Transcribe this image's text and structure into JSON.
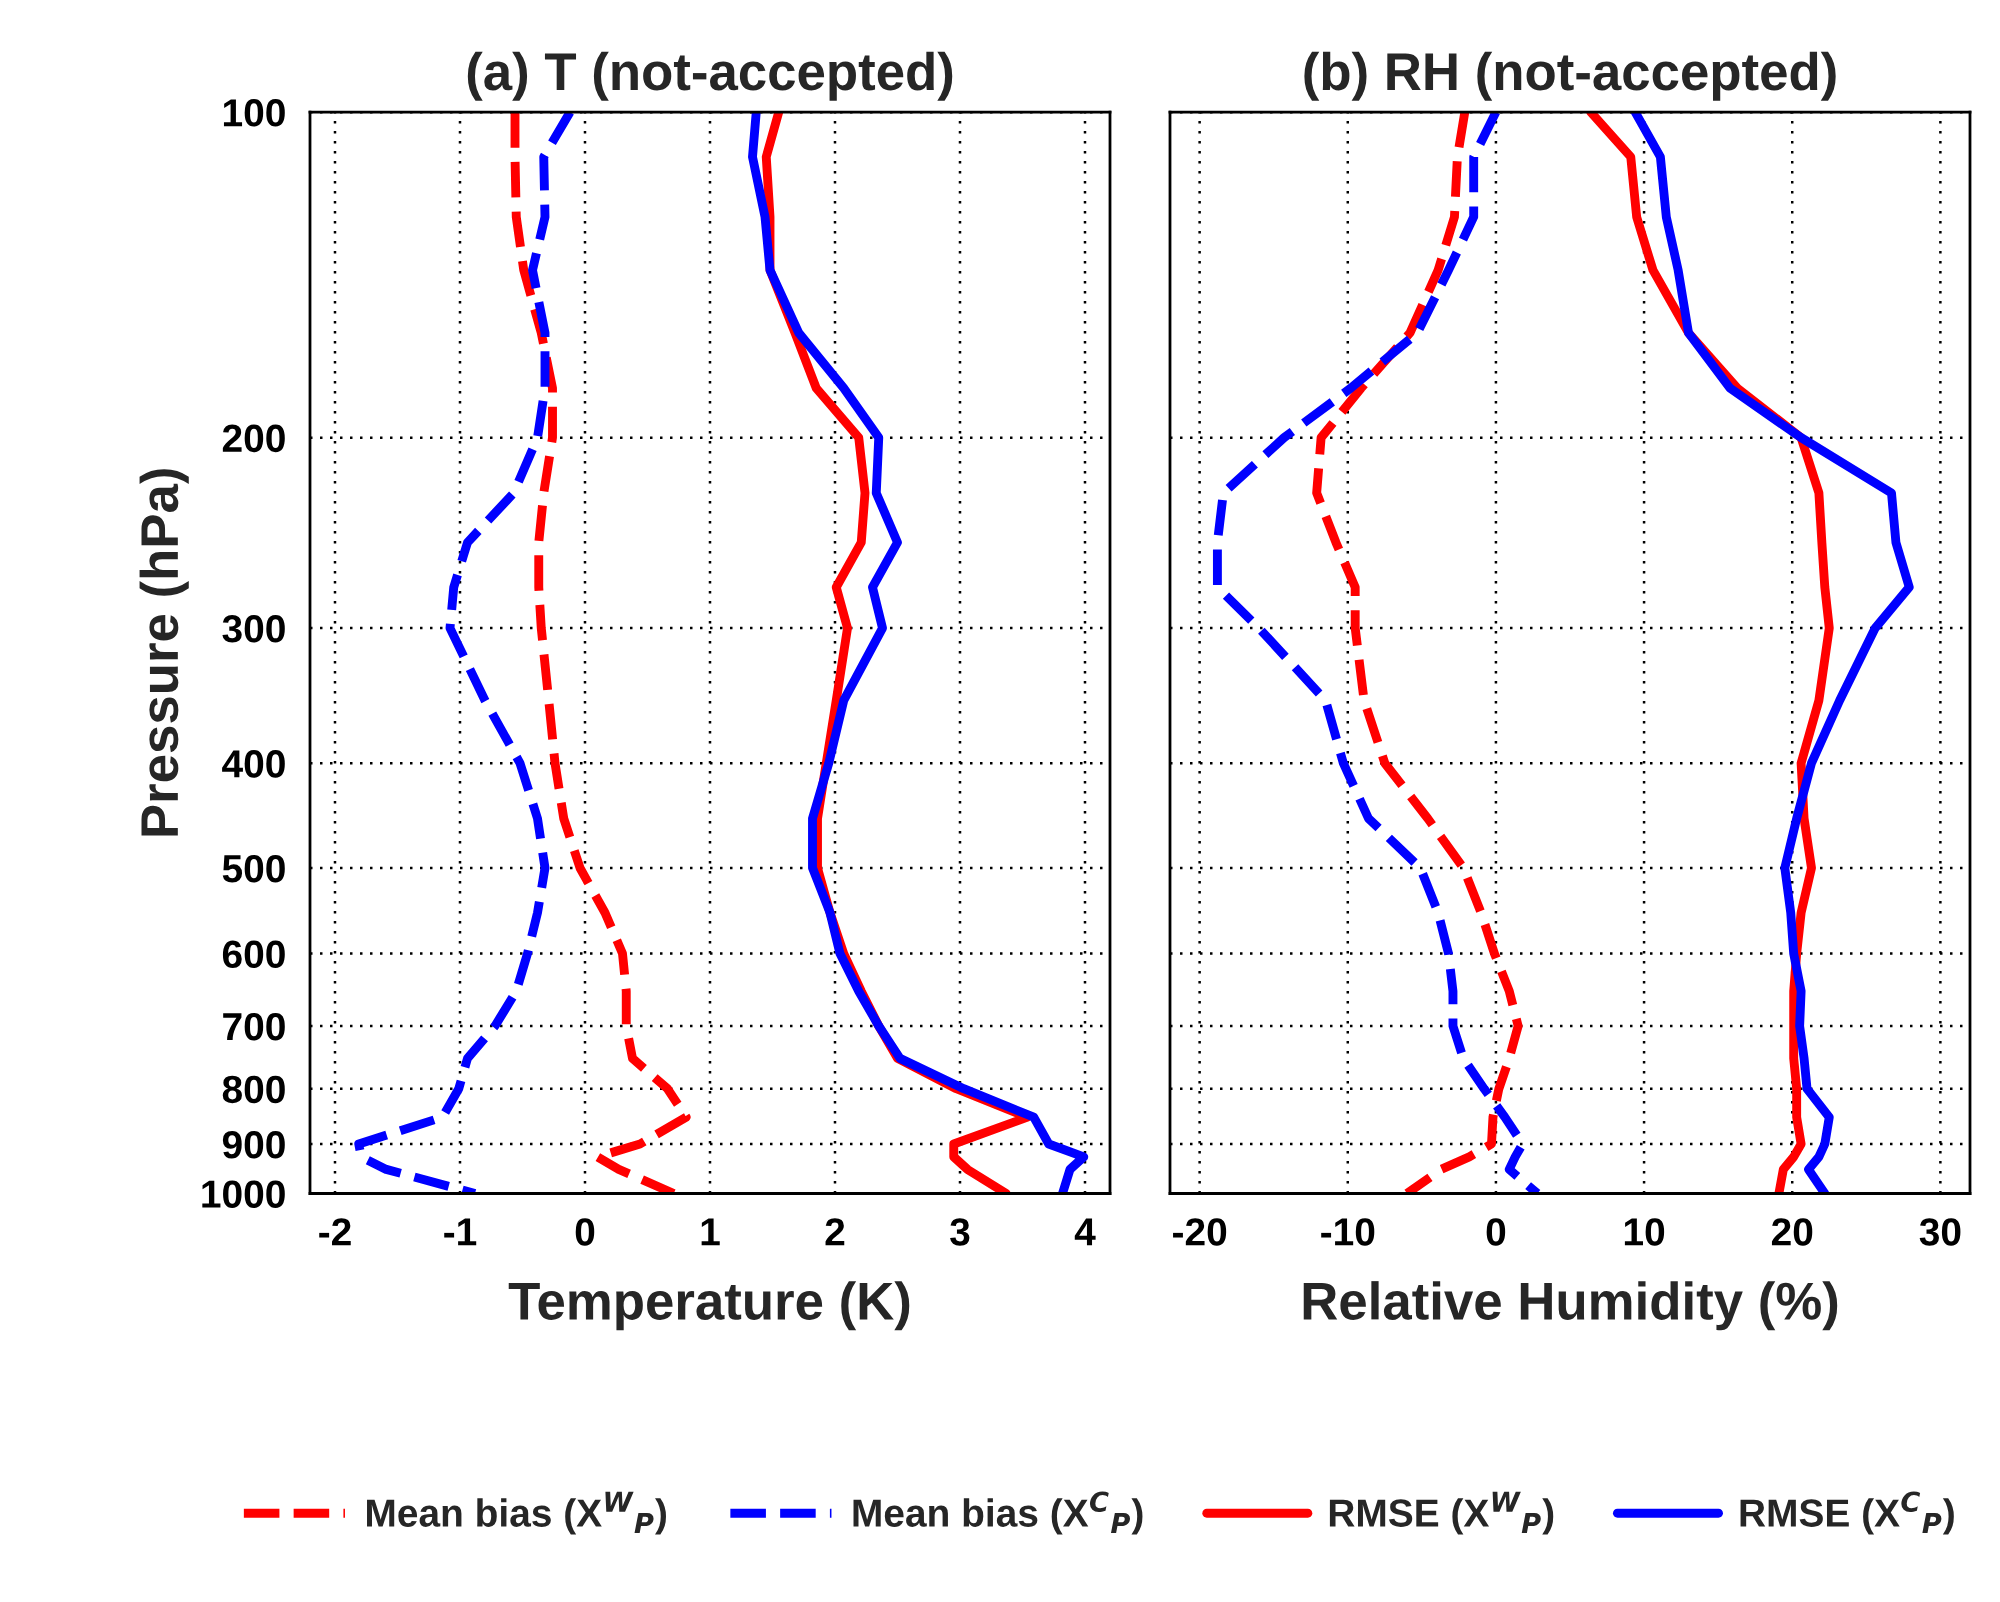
{
  "chart_data": [
    {
      "type": "line",
      "title": "(a) T (not-accepted)",
      "xlabel": "Temperature (K)",
      "ylabel": "Pressure (hPa)",
      "xlim": [
        -2.2,
        4.2
      ],
      "xticks": [
        -2,
        -1,
        0,
        1,
        2,
        3,
        4
      ],
      "ylim": [
        1000,
        100
      ],
      "yticks": [
        100,
        200,
        300,
        400,
        500,
        600,
        700,
        800,
        900,
        1000
      ],
      "log": "y",
      "grid": true,
      "legend": "bottom",
      "series": [
        {
          "name": "Mean bias (X$^{W}$$_{P}$)",
          "color": "#ff0000",
          "line_style": "dashed",
          "x": [
            -0.56,
            -0.56,
            -0.55,
            -0.49,
            -0.35,
            -0.26,
            -0.26,
            -0.33,
            -0.37,
            -0.37,
            -0.35,
            -0.29,
            -0.24,
            -0.17,
            -0.04,
            0.16,
            0.3,
            0.33,
            0.33,
            0.38,
            0.66,
            0.81,
            0.44,
            0.1,
            0.27,
            0.71
          ],
          "values": [
            100,
            110,
            125,
            140,
            160,
            180,
            200,
            225,
            250,
            275,
            300,
            350,
            400,
            450,
            500,
            550,
            600,
            650,
            700,
            750,
            800,
            850,
            900,
            925,
            950,
            1000
          ]
        },
        {
          "name": "Mean bias (X$^{C}$$_{P}$)",
          "color": "#0000ff",
          "line_style": "dashed",
          "x": [
            -0.12,
            -0.33,
            -0.32,
            -0.42,
            -0.32,
            -0.32,
            -0.38,
            -0.57,
            -0.94,
            -1.05,
            -1.08,
            -0.8,
            -0.52,
            -0.38,
            -0.32,
            -0.38,
            -0.46,
            -0.55,
            -0.72,
            -0.94,
            -1.01,
            -1.14,
            -1.81,
            -1.79,
            -1.59,
            -0.88
          ],
          "values": [
            100,
            110,
            125,
            140,
            160,
            180,
            200,
            225,
            250,
            275,
            300,
            350,
            400,
            450,
            500,
            550,
            600,
            650,
            700,
            750,
            800,
            850,
            900,
            925,
            950,
            1000
          ]
        },
        {
          "name": "RMSE (X$^{W}$$_{P}$)",
          "color": "#ff0000",
          "line_style": "solid",
          "x": [
            1.55,
            1.45,
            1.48,
            1.48,
            1.68,
            1.85,
            2.19,
            2.24,
            2.21,
            2.01,
            2.1,
            2.01,
            1.93,
            1.86,
            1.86,
            1.96,
            2.07,
            2.21,
            2.35,
            2.5,
            2.97,
            3.54,
            2.95,
            2.95,
            3.06,
            3.37
          ],
          "values": [
            100,
            110,
            125,
            140,
            160,
            180,
            200,
            225,
            250,
            275,
            300,
            350,
            400,
            450,
            500,
            550,
            600,
            650,
            700,
            750,
            800,
            850,
            900,
            925,
            950,
            1000
          ]
        },
        {
          "name": "RMSE (X$^{C}$$_{P}$)",
          "color": "#0000ff",
          "line_style": "solid",
          "x": [
            1.37,
            1.34,
            1.44,
            1.48,
            1.71,
            2.07,
            2.35,
            2.33,
            2.5,
            2.3,
            2.38,
            2.07,
            1.95,
            1.82,
            1.82,
            1.96,
            2.04,
            2.19,
            2.35,
            2.52,
            3.03,
            3.59,
            3.71,
            3.99,
            3.88,
            3.82
          ],
          "values": [
            100,
            110,
            125,
            140,
            160,
            180,
            200,
            225,
            250,
            275,
            300,
            350,
            400,
            450,
            500,
            550,
            600,
            650,
            700,
            750,
            800,
            850,
            900,
            925,
            950,
            1000
          ]
        }
      ]
    },
    {
      "type": "line",
      "title": "(b) RH (not-accepted)",
      "xlabel": "Relative Humidity (%)",
      "xlim": [
        -22,
        32
      ],
      "xticks": [
        -20,
        -10,
        0,
        10,
        20,
        30
      ],
      "ylim": [
        1000,
        100
      ],
      "yticks": [
        100,
        200,
        300,
        400,
        500,
        600,
        700,
        800,
        900,
        1000
      ],
      "log": "y",
      "grid": true,
      "tick_labels": "x",
      "series": [
        {
          "color": "#ff0000",
          "line_style": "dashed",
          "x": [
            -2.1,
            -2.6,
            -2.8,
            -3.9,
            -5.8,
            -9.1,
            -11.8,
            -12.1,
            -10.8,
            -9.5,
            -9.5,
            -8.9,
            -7.5,
            -4.6,
            -2.2,
            -1.0,
            -0.1,
            0.9,
            1.5,
            0.9,
            0.2,
            -0.2,
            -0.3,
            -1.8,
            -3.7,
            -6.0
          ],
          "values": [
            100,
            110,
            125,
            140,
            160,
            180,
            200,
            225,
            250,
            275,
            300,
            350,
            400,
            450,
            500,
            550,
            600,
            650,
            700,
            750,
            800,
            850,
            900,
            925,
            950,
            1000
          ]
        },
        {
          "color": "#0000ff",
          "line_style": "dashed",
          "x": [
            0.0,
            -1.5,
            -1.5,
            -3.2,
            -5.3,
            -9.8,
            -14.3,
            -18.4,
            -18.8,
            -18.8,
            -16.0,
            -11.5,
            -10.3,
            -8.6,
            -5.1,
            -3.9,
            -3.2,
            -2.9,
            -2.9,
            -2.2,
            -0.8,
            0.6,
            1.8,
            1.3,
            0.9,
            2.8
          ],
          "values": [
            100,
            110,
            125,
            140,
            160,
            180,
            200,
            225,
            250,
            275,
            300,
            350,
            400,
            450,
            500,
            550,
            600,
            650,
            700,
            750,
            800,
            850,
            900,
            925,
            950,
            1000
          ]
        },
        {
          "color": "#ff0000",
          "line_style": "solid",
          "x": [
            6.4,
            9.1,
            9.5,
            10.6,
            13.0,
            16.3,
            20.6,
            21.8,
            22.0,
            22.2,
            22.5,
            21.8,
            20.6,
            20.8,
            21.3,
            20.6,
            20.3,
            20.1,
            20.1,
            20.1,
            20.3,
            20.3,
            20.6,
            20.1,
            19.4,
            19.1
          ],
          "values": [
            100,
            110,
            125,
            140,
            160,
            180,
            200,
            225,
            250,
            275,
            300,
            350,
            400,
            450,
            500,
            550,
            600,
            650,
            700,
            750,
            800,
            850,
            900,
            925,
            950,
            1000
          ]
        },
        {
          "color": "#0000ff",
          "line_style": "solid",
          "x": [
            9.4,
            11.1,
            11.5,
            12.3,
            13.0,
            15.8,
            20.6,
            26.7,
            27.0,
            27.9,
            25.6,
            23.2,
            21.3,
            20.3,
            19.5,
            19.9,
            20.1,
            20.6,
            20.5,
            20.8,
            21.0,
            22.5,
            22.2,
            21.8,
            21.1,
            22.2
          ],
          "values": [
            100,
            110,
            125,
            140,
            160,
            180,
            200,
            225,
            250,
            275,
            300,
            350,
            400,
            450,
            500,
            550,
            600,
            650,
            700,
            750,
            800,
            850,
            900,
            925,
            950,
            1000
          ]
        }
      ]
    }
  ]
}
